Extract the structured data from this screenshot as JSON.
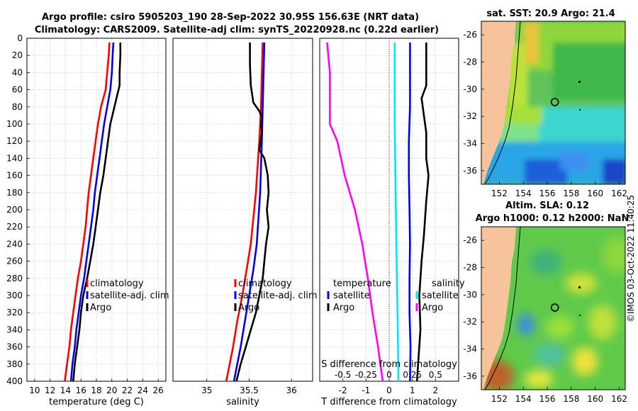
{
  "titles": {
    "line1": "Argo profile: csiro 5905203_190 28-Sep-2022 30.95S 156.63E (NRT data)",
    "line2": "Climatology: CARS2009. Satellite-adj clim: synTS_20220928.nc (0.22d earlier)"
  },
  "watermark": "©IMOS 03-Oct-2022 11:40:25",
  "colors": {
    "climatology": "#ff0000",
    "satellite": "#0000ee",
    "argo": "#000000",
    "temp_diff": "#ff00ff",
    "sal_diff_sat": "#00e5ff",
    "land": "#f7c39a"
  },
  "chart_data": [
    {
      "type": "line",
      "name": "temperature",
      "xlabel": "temperature (deg C)",
      "xlim": [
        9,
        27
      ],
      "xticks": [
        10,
        12,
        14,
        16,
        18,
        20,
        22,
        24,
        26
      ],
      "ylim": [
        0,
        400
      ],
      "yticks": [
        0,
        20,
        40,
        60,
        80,
        100,
        120,
        140,
        160,
        180,
        200,
        220,
        240,
        260,
        280,
        300,
        320,
        340,
        360,
        380,
        400
      ],
      "legend": [
        "climatology",
        "satellite-adj. clim",
        "Argo"
      ],
      "series": [
        {
          "name": "climatology",
          "color": "#ff0000",
          "points": [
            [
              19.7,
              5
            ],
            [
              19.6,
              20
            ],
            [
              19.4,
              40
            ],
            [
              19.2,
              60
            ],
            [
              18.6,
              80
            ],
            [
              18.2,
              100
            ],
            [
              17.9,
              120
            ],
            [
              17.6,
              140
            ],
            [
              17.3,
              160
            ],
            [
              17.0,
              180
            ],
            [
              16.8,
              200
            ],
            [
              16.6,
              220
            ],
            [
              16.3,
              240
            ],
            [
              16.0,
              260
            ],
            [
              15.6,
              280
            ],
            [
              15.3,
              300
            ],
            [
              15.0,
              320
            ],
            [
              14.7,
              340
            ],
            [
              14.5,
              360
            ],
            [
              14.2,
              380
            ],
            [
              13.9,
              400
            ]
          ]
        },
        {
          "name": "satellite-adj. clim",
          "color": "#0000ee",
          "points": [
            [
              20.2,
              5
            ],
            [
              20.1,
              20
            ],
            [
              20.0,
              40
            ],
            [
              19.8,
              60
            ],
            [
              19.4,
              80
            ],
            [
              19.0,
              100
            ],
            [
              18.7,
              120
            ],
            [
              18.4,
              140
            ],
            [
              18.1,
              160
            ],
            [
              17.8,
              180
            ],
            [
              17.6,
              200
            ],
            [
              17.3,
              220
            ],
            [
              17.0,
              240
            ],
            [
              16.7,
              260
            ],
            [
              16.4,
              280
            ],
            [
              16.0,
              300
            ],
            [
              15.7,
              320
            ],
            [
              15.4,
              340
            ],
            [
              15.2,
              360
            ],
            [
              14.9,
              380
            ],
            [
              14.7,
              400
            ]
          ]
        },
        {
          "name": "Argo",
          "color": "#000000",
          "points": [
            [
              21.1,
              5
            ],
            [
              21.1,
              20
            ],
            [
              21.0,
              40
            ],
            [
              21.0,
              55
            ],
            [
              20.6,
              70
            ],
            [
              20.2,
              85
            ],
            [
              19.8,
              100
            ],
            [
              19.5,
              120
            ],
            [
              19.2,
              140
            ],
            [
              18.9,
              160
            ],
            [
              18.5,
              180
            ],
            [
              18.2,
              200
            ],
            [
              17.9,
              220
            ],
            [
              17.6,
              240
            ],
            [
              17.2,
              260
            ],
            [
              16.8,
              280
            ],
            [
              16.3,
              300
            ],
            [
              16.0,
              320
            ],
            [
              15.8,
              340
            ],
            [
              15.5,
              360
            ],
            [
              15.2,
              380
            ],
            [
              15.0,
              400
            ]
          ]
        }
      ]
    },
    {
      "type": "line",
      "name": "salinity",
      "xlabel": "salinity",
      "xlim": [
        34.6,
        36.25
      ],
      "xticks": [
        35,
        35.5,
        36
      ],
      "ylim": [
        0,
        400
      ],
      "legend": [
        "climatology",
        "satellite-adj. clim",
        "Argo"
      ],
      "series": [
        {
          "name": "climatology",
          "color": "#ff0000",
          "points": [
            [
              35.66,
              5
            ],
            [
              35.65,
              40
            ],
            [
              35.64,
              80
            ],
            [
              35.62,
              120
            ],
            [
              35.6,
              150
            ],
            [
              35.58,
              180
            ],
            [
              35.55,
              210
            ],
            [
              35.52,
              240
            ],
            [
              35.47,
              270
            ],
            [
              35.42,
              300
            ],
            [
              35.36,
              330
            ],
            [
              35.31,
              360
            ],
            [
              35.26,
              385
            ],
            [
              35.23,
              400
            ]
          ]
        },
        {
          "name": "satellite-adj. clim",
          "color": "#0000ee",
          "points": [
            [
              35.68,
              5
            ],
            [
              35.67,
              40
            ],
            [
              35.66,
              80
            ],
            [
              35.65,
              120
            ],
            [
              35.64,
              150
            ],
            [
              35.63,
              180
            ],
            [
              35.61,
              210
            ],
            [
              35.59,
              240
            ],
            [
              35.55,
              270
            ],
            [
              35.5,
              300
            ],
            [
              35.45,
              330
            ],
            [
              35.4,
              360
            ],
            [
              35.35,
              385
            ],
            [
              35.32,
              400
            ]
          ]
        },
        {
          "name": "Argo",
          "color": "#000000",
          "points": [
            [
              35.51,
              5
            ],
            [
              35.51,
              30
            ],
            [
              35.52,
              55
            ],
            [
              35.55,
              75
            ],
            [
              35.62,
              85
            ],
            [
              35.65,
              92
            ],
            [
              35.64,
              100
            ],
            [
              35.65,
              110
            ],
            [
              35.62,
              130
            ],
            [
              35.68,
              140
            ],
            [
              35.72,
              160
            ],
            [
              35.73,
              180
            ],
            [
              35.71,
              200
            ],
            [
              35.73,
              220
            ],
            [
              35.7,
              240
            ],
            [
              35.68,
              260
            ],
            [
              35.66,
              280
            ],
            [
              35.62,
              300
            ],
            [
              35.58,
              320
            ],
            [
              35.52,
              340
            ],
            [
              35.46,
              360
            ],
            [
              35.4,
              380
            ],
            [
              35.35,
              400
            ]
          ]
        }
      ]
    },
    {
      "type": "line",
      "name": "difference",
      "xlabel": "T difference from climatology",
      "xlim": [
        -3,
        3
      ],
      "xticks": [
        -2,
        -1,
        0,
        1,
        2
      ],
      "top_axis_label": "S difference from climatology",
      "top_xlim": [
        -0.75,
        0.75
      ],
      "top_xticks": [
        -0.5,
        -0.25,
        0,
        0.25,
        0.5
      ],
      "ylim": [
        0,
        400
      ],
      "legend_left_title": "temperature",
      "legend_right_title": "salinity",
      "legend_left": [
        "satellite",
        "Argo"
      ],
      "legend_right": [
        "satellite",
        "Argo"
      ],
      "series": [
        {
          "name": "temperature satellite",
          "color": "#0000ee",
          "points": [
            [
              0.9,
              5
            ],
            [
              0.9,
              40
            ],
            [
              0.9,
              80
            ],
            [
              0.85,
              120
            ],
            [
              0.85,
              160
            ],
            [
              0.88,
              200
            ],
            [
              0.9,
              240
            ],
            [
              0.88,
              280
            ],
            [
              0.88,
              320
            ],
            [
              0.92,
              360
            ],
            [
              0.9,
              400
            ]
          ]
        },
        {
          "name": "temperature Argo",
          "color": "#000000",
          "points": [
            [
              1.6,
              5
            ],
            [
              1.6,
              55
            ],
            [
              1.4,
              70
            ],
            [
              1.5,
              90
            ],
            [
              1.6,
              110
            ],
            [
              1.6,
              140
            ],
            [
              1.7,
              160
            ],
            [
              1.6,
              190
            ],
            [
              1.5,
              230
            ],
            [
              1.4,
              260
            ],
            [
              1.3,
              300
            ],
            [
              1.35,
              340
            ],
            [
              1.25,
              380
            ],
            [
              1.2,
              400
            ]
          ]
        },
        {
          "name": "salinity satellite",
          "color": "#00e5ff",
          "points": [
            [
              0.06,
              5
            ],
            [
              0.06,
              100
            ],
            [
              0.07,
              180
            ],
            [
              0.08,
              260
            ],
            [
              0.09,
              320
            ],
            [
              0.1,
              400
            ]
          ]
        },
        {
          "name": "salinity Argo",
          "color": "#ff00ff",
          "points": [
            [
              -0.67,
              5
            ],
            [
              -0.64,
              40
            ],
            [
              -0.64,
              100
            ],
            [
              -0.56,
              120
            ],
            [
              -0.48,
              160
            ],
            [
              -0.37,
              200
            ],
            [
              -0.29,
              240
            ],
            [
              -0.23,
              280
            ],
            [
              -0.18,
              320
            ],
            [
              -0.12,
              360
            ],
            [
              -0.07,
              400
            ]
          ]
        }
      ]
    },
    {
      "type": "heatmap",
      "name": "sst_map",
      "title": "sat. SST: 20.9 Argo: 21.4",
      "xlim": [
        150.5,
        162.5
      ],
      "ylim": [
        -37,
        -25
      ],
      "xticks": [
        152,
        154,
        156,
        158,
        160,
        162
      ],
      "yticks": [
        -26,
        -28,
        -30,
        -32,
        -34,
        -36
      ],
      "argo_position": [
        156.63,
        -30.95
      ]
    },
    {
      "type": "heatmap",
      "name": "sla_map",
      "title_line1": "Altim. SLA: 0.12",
      "title_line2": "Argo h1000: 0.12 h2000: NaN",
      "xlim": [
        150.5,
        162.5
      ],
      "ylim": [
        -37,
        -25
      ],
      "xticks": [
        152,
        154,
        156,
        158,
        160,
        162
      ],
      "yticks": [
        -26,
        -28,
        -30,
        -32,
        -34,
        -36
      ],
      "argo_position": [
        156.63,
        -30.95
      ]
    }
  ]
}
